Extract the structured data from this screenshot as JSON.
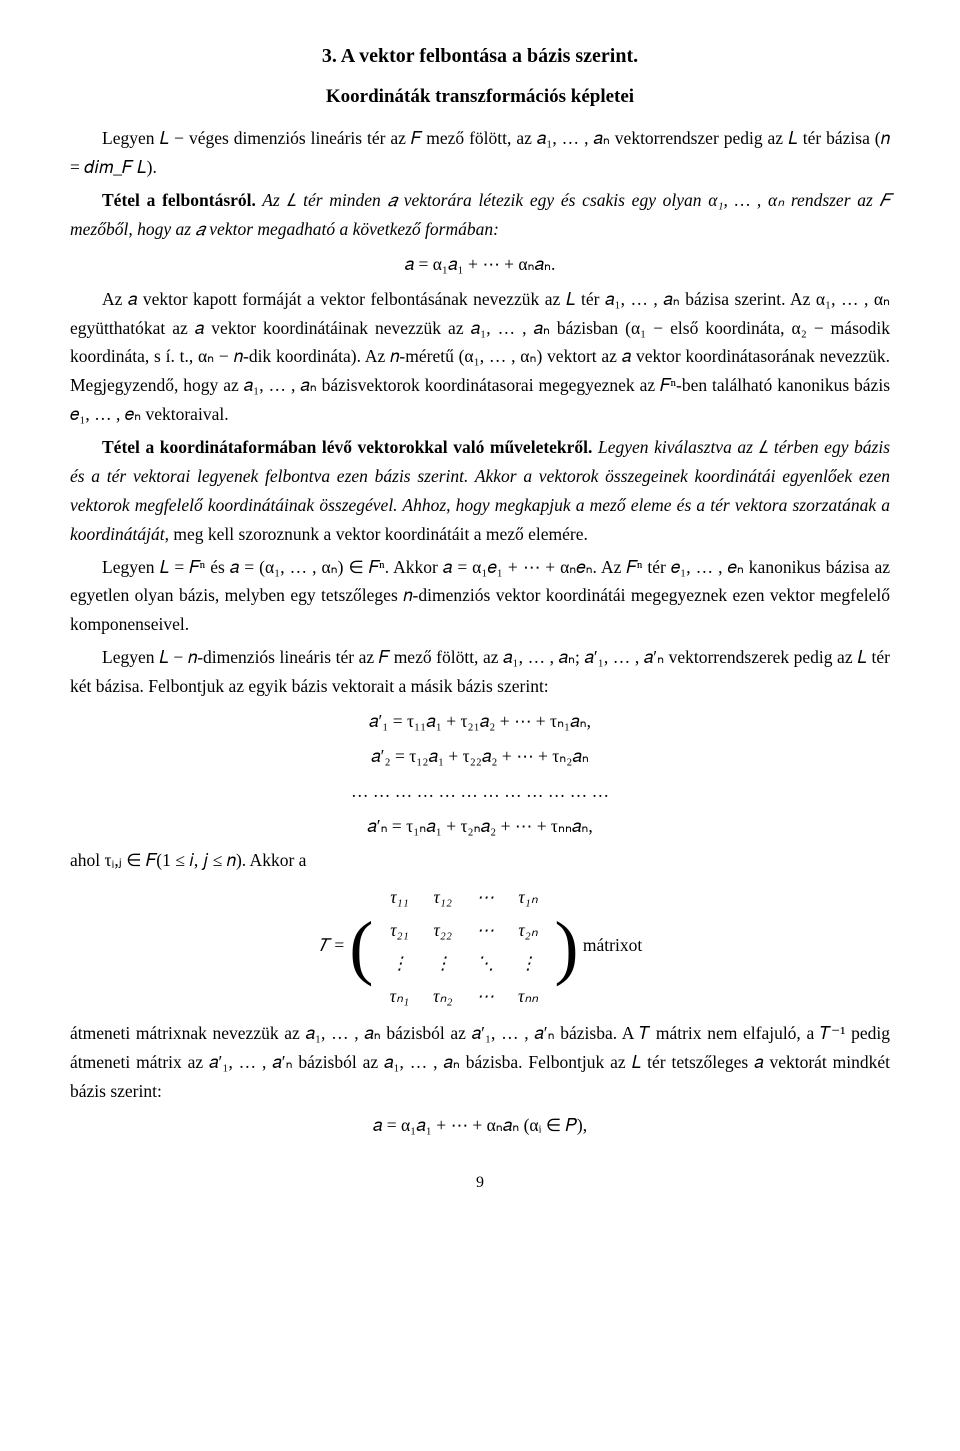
{
  "title": "3. A vektor felbontása a bázis szerint.",
  "subtitle": "Koordináták transzformációs képletei",
  "p1": "Legyen 𝐿 − véges dimenziós lineáris tér az 𝐹 mező fölött, az 𝑎₁, … , 𝑎ₙ vektorrendszer pedig az 𝐿 tér bázisa (𝑛 = 𝑑𝑖𝑚_𝐹 𝐿).",
  "p2_lead": "Tétel a felbontásról.",
  "p2_body": " Az 𝐿 tér minden 𝑎 vektorára létezik egy és csakis egy olyan α₁, … , αₙ rendszer az 𝐹 mezőből, hogy az 𝑎 vektor megadható a következő formában:",
  "f1": "𝑎 = α₁𝑎₁ + ⋯ + αₙ𝑎ₙ.",
  "p3": "Az 𝑎 vektor kapott formáját a vektor felbontásának nevezzük az 𝐿 tér 𝑎₁, … , 𝑎ₙ bázisa szerint. Az α₁, … , αₙ együtthatókat az 𝑎 vektor koordinátáinak nevezzük az 𝑎₁, … , 𝑎ₙ bázisban (α₁ − első koordináta, α₂ − második koordináta, s í. t., αₙ − 𝑛-dik koordináta). Az 𝑛-méretű (α₁, … , αₙ) vektort az 𝑎 vektor koordinátasorának nevezzük. Megjegyzendő, hogy az 𝑎₁, … , 𝑎ₙ bázisvektorok koordinátasorai megegyeznek az 𝐹ⁿ-ben található kanonikus bázis 𝑒₁, … , 𝑒ₙ vektoraival.",
  "p4_lead": "Tétel a koordinátaformában lévő vektorokkal való műveletekről.",
  "p4_body": " Legyen kiválasztva az 𝐿 térben egy bázis és a tér vektorai legyenek felbontva ezen bázis szerint. Akkor a vektorok összegeinek koordinátái egyenlőek ezen vektorok megfelelő koordinátáinak összegével. Ahhoz, hogy megkapjuk a mező eleme és a tér vektora szorzatának a koordinátáját",
  "p4_tail": ", meg kell szoroznunk a vektor koordinátáit a mező elemére.",
  "p5": "Legyen 𝐿 = 𝐹ⁿ és 𝑎 = (α₁, … , αₙ) ∈ 𝐹ⁿ. Akkor 𝑎 = α₁𝑒₁ + ⋯ + αₙ𝑒ₙ. Az 𝐹ⁿ tér 𝑒₁, … , 𝑒ₙ kanonikus bázisa az egyetlen olyan bázis, melyben egy tetszőleges 𝑛-dimenziós vektor koordinátái megegyeznek ezen vektor megfelelő komponenseivel.",
  "p6": "Legyen 𝐿 − 𝑛-dimenziós lineáris tér az 𝐹 mező fölött, az 𝑎₁, … , 𝑎ₙ; 𝑎′₁, … , 𝑎′ₙ vektorrend­szerek pedig az 𝐿 tér két bázisa. Felbontjuk az egyik bázis vektorait a másik bázis szerint:",
  "f2a": "𝑎′₁ = τ₁₁𝑎₁ + τ₂₁𝑎₂ + ⋯ + τₙ₁𝑎ₙ,",
  "f2b": "𝑎′₂ = τ₁₂𝑎₁ + τ₂₂𝑎₂ + ⋯ + τₙ₂𝑎ₙ",
  "f2c": "… … … … … … … … … … … …",
  "f2d": "𝑎′ₙ = τ₁ₙ𝑎₁ + τ₂ₙ𝑎₂ + ⋯ + τₙₙ𝑎ₙ,",
  "p7": "ahol τᵢ,ⱼ ∈ 𝐹(1 ≤ 𝑖, 𝑗 ≤ 𝑛). Akkor a",
  "matrix_prefix": "𝑇 = ",
  "matrix": {
    "rows": [
      [
        "τ₁₁",
        "τ₁₂",
        "⋯",
        "τ₁ₙ"
      ],
      [
        "τ₂₁",
        "τ₂₂",
        "⋯",
        "τ₂ₙ"
      ],
      [
        "⋮",
        "⋮",
        "⋱",
        "⋮"
      ],
      [
        "τₙ₁",
        "τₙ₂",
        "⋯",
        "τₙₙ"
      ]
    ]
  },
  "matrix_suffix": "  mátrixot",
  "p8": "átmeneti mátrixnak nevezzük az 𝑎₁, … , 𝑎ₙ bázisból az 𝑎′₁, … , 𝑎′ₙ bázisba. A 𝑇 mátrix nem elfajuló, a 𝑇⁻¹ pedig átmeneti mátrix az 𝑎′₁, … , 𝑎′ₙ bázisból az 𝑎₁, … , 𝑎ₙ bázisba. Felbontjuk az 𝐿 tér tetszőleges 𝑎 vektorát mindkét bázis szerint:",
  "f3": "𝑎 = α₁𝑎₁ + ⋯ + αₙ𝑎ₙ   (αᵢ ∈ 𝑃),",
  "pagenum": "9",
  "colors": {
    "text": "#000000",
    "background": "#ffffff"
  },
  "typography": {
    "body_font": "Times New Roman",
    "body_size_pt": 12,
    "heading_size_pt": 14,
    "line_height": 1.65
  }
}
